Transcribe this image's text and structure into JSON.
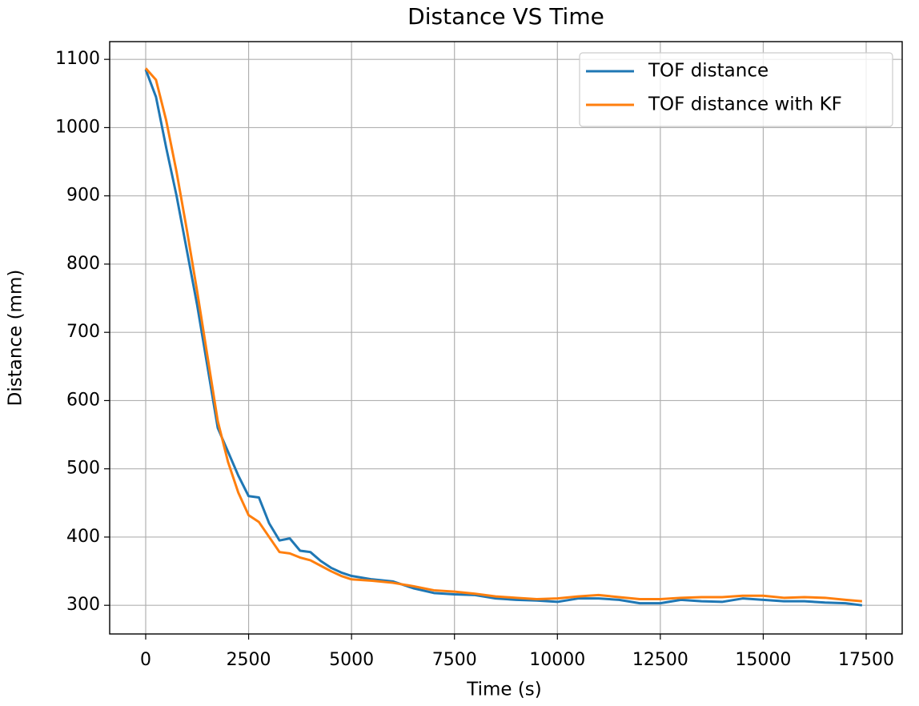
{
  "chart_data": {
    "type": "line",
    "title": "Distance VS Time",
    "x_label": "Time (s)",
    "y_label": "Distance (mm)",
    "x": [
      0,
      250,
      500,
      750,
      1000,
      1250,
      1500,
      1750,
      2000,
      2250,
      2500,
      2750,
      3000,
      3250,
      3500,
      3750,
      4000,
      4250,
      4500,
      4750,
      5000,
      5500,
      6000,
      6500,
      7000,
      7500,
      8000,
      8500,
      9000,
      9500,
      10000,
      10500,
      11000,
      11500,
      12000,
      12500,
      13000,
      13500,
      14000,
      14500,
      15000,
      15500,
      16000,
      16500,
      17000,
      17400
    ],
    "series": [
      {
        "name": "TOF distance",
        "color": "#1f77b4",
        "values": [
          1085,
          1045,
          970,
          900,
          820,
          740,
          650,
          560,
          525,
          490,
          460,
          458,
          420,
          395,
          398,
          380,
          378,
          365,
          355,
          348,
          343,
          338,
          335,
          325,
          318,
          316,
          315,
          310,
          308,
          307,
          305,
          310,
          310,
          308,
          303,
          303,
          308,
          306,
          305,
          310,
          308,
          306,
          306,
          304,
          303,
          300
        ]
      },
      {
        "name": "TOF distance with KF",
        "color": "#ff7f0e",
        "values": [
          1087,
          1070,
          1010,
          935,
          850,
          760,
          665,
          570,
          510,
          465,
          432,
          422,
          400,
          378,
          376,
          370,
          366,
          358,
          350,
          343,
          338,
          336,
          333,
          328,
          322,
          320,
          317,
          313,
          311,
          309,
          310,
          313,
          315,
          312,
          309,
          309,
          311,
          312,
          312,
          314,
          314,
          311,
          312,
          311,
          308,
          306
        ]
      }
    ],
    "xlim": [
      -875,
      18375
    ],
    "ylim": [
      258,
      1126
    ],
    "xticks": [
      0,
      2500,
      5000,
      7500,
      10000,
      12500,
      15000,
      17500
    ],
    "yticks": [
      300,
      400,
      500,
      600,
      700,
      800,
      900,
      1000,
      1100
    ],
    "grid": true,
    "legend": "upper right"
  }
}
